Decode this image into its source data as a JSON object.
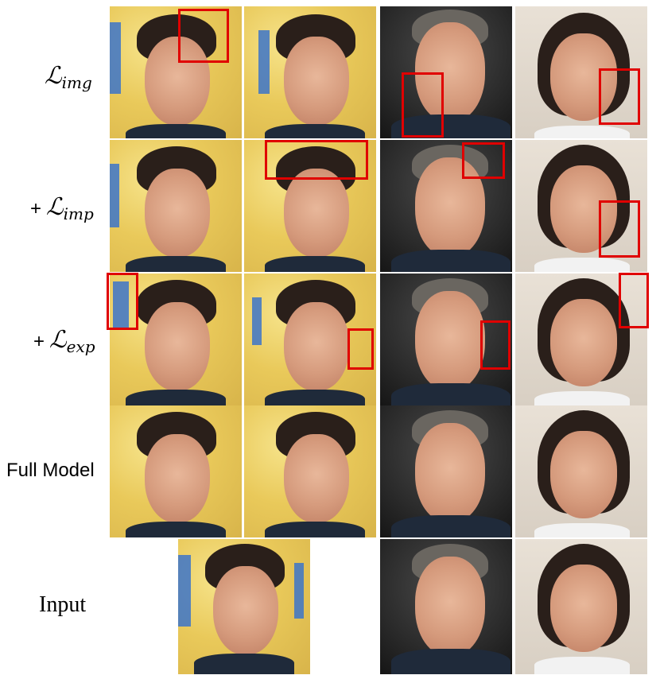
{
  "rows": [
    {
      "prefix": "",
      "symbol": "ℒ",
      "subscript": "img"
    },
    {
      "prefix": "+",
      "symbol": "ℒ",
      "subscript": "imp"
    },
    {
      "prefix": "+",
      "symbol": "ℒ",
      "subscript": "exp"
    }
  ],
  "full_model_label": "Full Model",
  "input_label": "Input",
  "colors": {
    "highlight_box": "#e00000"
  }
}
